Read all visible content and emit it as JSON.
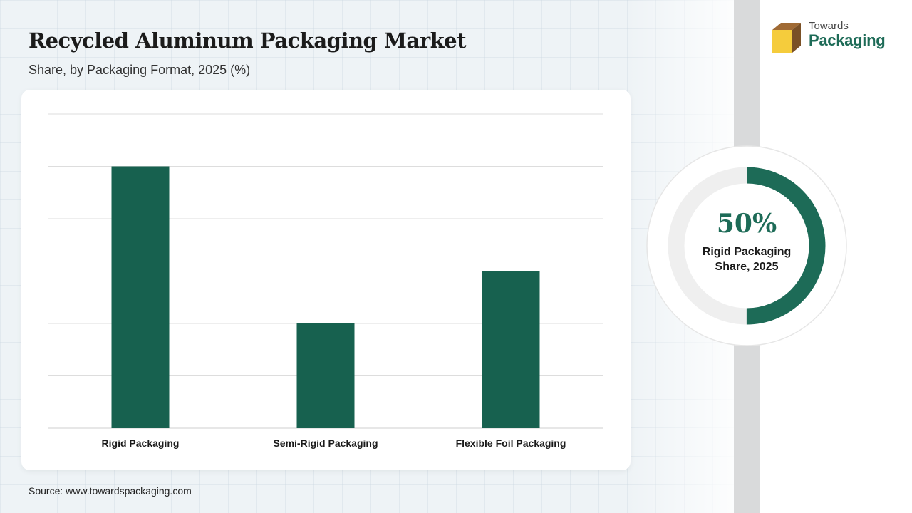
{
  "header": {
    "title": "Recycled Aluminum Packaging Market",
    "subtitle": "Share, by Packaging Format, 2025 (%)"
  },
  "logo": {
    "line1": "Towards",
    "line2": "Packaging"
  },
  "highlight": {
    "value": "50%",
    "label_line1": "Rigid Packaging",
    "label_line2": "Share, 2025",
    "fraction": 0.5
  },
  "source": "Source: www.towardspackaging.com",
  "colors": {
    "bar": "#17614f",
    "accent": "#1d6b57",
    "donut_track": "#efefef",
    "gridline": "#dddddd"
  },
  "chart_data": {
    "type": "bar",
    "title": "Recycled Aluminum Packaging Market",
    "subtitle": "Share, by Packaging Format, 2025 (%)",
    "categories": [
      "Rigid Packaging",
      "Semi-Rigid Packaging",
      "Flexible Foil Packaging"
    ],
    "values": [
      50,
      20,
      30
    ],
    "xlabel": "",
    "ylabel": "",
    "ylim": [
      0,
      60
    ],
    "grid": true,
    "legend": "none"
  }
}
